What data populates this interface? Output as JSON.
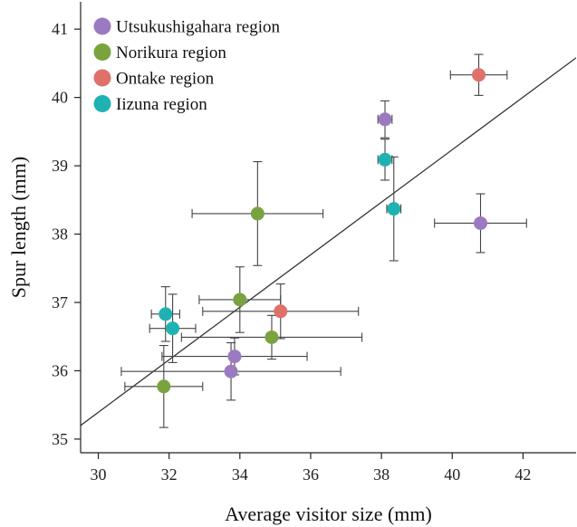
{
  "chart_data": {
    "type": "scatter",
    "xlabel": "Average visitor size (mm)",
    "ylabel": "Spur length (mm)",
    "xlim": [
      29.5,
      43.5
    ],
    "ylim": [
      34.8,
      41.4
    ],
    "x_ticks": [
      30,
      32,
      34,
      36,
      38,
      40,
      42
    ],
    "y_ticks": [
      35,
      36,
      37,
      38,
      39,
      40,
      41
    ],
    "grid": false,
    "legend_position": "top-left",
    "series": [
      {
        "name": "Utsukushigahara region",
        "color": "#9b7ac1",
        "points": [
          {
            "x": 38.1,
            "y": 39.68,
            "x_err": 0.2,
            "y_err": 0.27
          },
          {
            "x": 40.8,
            "y": 38.16,
            "x_err": 1.3,
            "y_err": 0.43
          },
          {
            "x": 33.85,
            "y": 36.21,
            "x_err": 2.05,
            "y_err": 0.27
          },
          {
            "x": 33.75,
            "y": 35.99,
            "x_err": 3.1,
            "y_err": 0.42
          }
        ]
      },
      {
        "name": "Norikura region",
        "color": "#7aa33f",
        "points": [
          {
            "x": 34.5,
            "y": 38.3,
            "x_err": 1.85,
            "y_err": 0.76
          },
          {
            "x": 34.0,
            "y": 37.04,
            "x_err": 1.15,
            "y_err": 0.48
          },
          {
            "x": 34.9,
            "y": 36.49,
            "x_err": 2.55,
            "y_err": 0.32
          },
          {
            "x": 31.85,
            "y": 35.77,
            "x_err": 1.1,
            "y_err": 0.6
          }
        ]
      },
      {
        "name": "Ontake region",
        "color": "#e0706a",
        "points": [
          {
            "x": 40.75,
            "y": 40.33,
            "x_err": 0.8,
            "y_err": 0.3
          },
          {
            "x": 35.15,
            "y": 36.87,
            "x_err": 2.2,
            "y_err": 0.4
          }
        ]
      },
      {
        "name": "Iizuna region",
        "color": "#20b2b2",
        "points": [
          {
            "x": 38.1,
            "y": 39.09,
            "x_err": 0.2,
            "y_err": 0.3
          },
          {
            "x": 38.35,
            "y": 38.37,
            "x_err": 0.2,
            "y_err": 0.76
          },
          {
            "x": 31.9,
            "y": 36.83,
            "x_err": 0.4,
            "y_err": 0.4
          },
          {
            "x": 32.1,
            "y": 36.62,
            "x_err": 0.65,
            "y_err": 0.5
          }
        ]
      }
    ],
    "fit_line": {
      "x": [
        29.5,
        43.5
      ],
      "y": [
        35.2,
        40.58
      ]
    }
  }
}
